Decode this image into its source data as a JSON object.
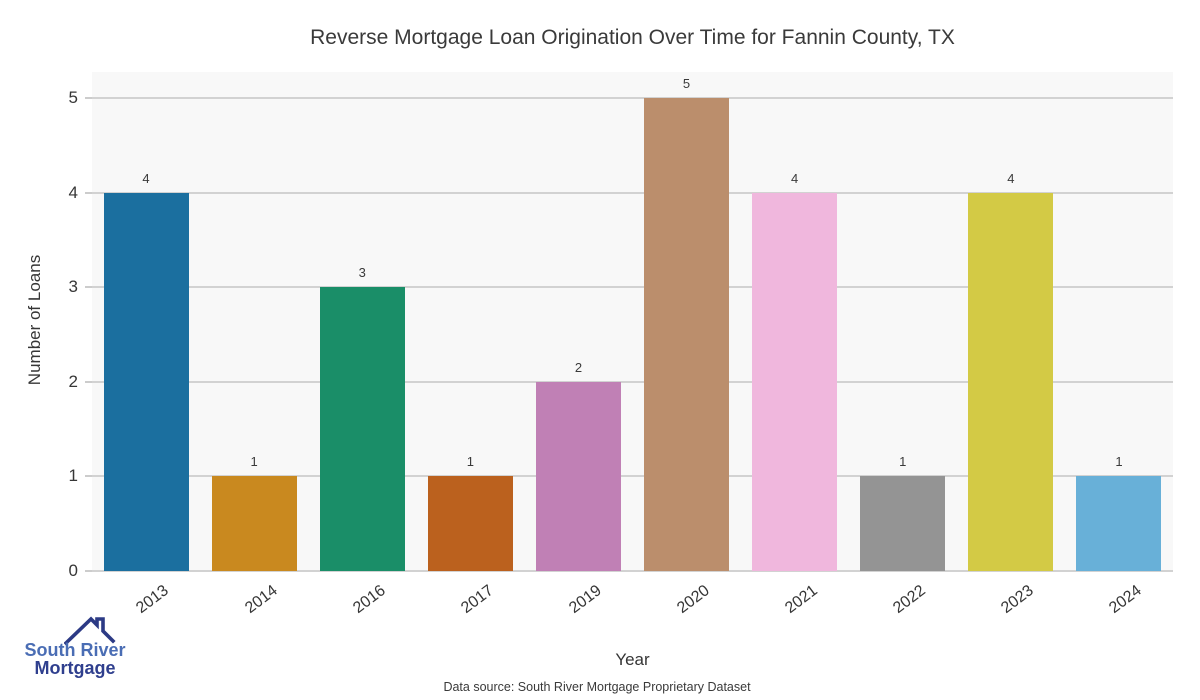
{
  "title": "Reverse Mortgage Loan Origination Over Time for Fannin County, TX",
  "caption": "Data source: South River Mortgage Proprietary Dataset",
  "logo": {
    "line1": "South River",
    "line2": "Mortgage",
    "line1_color": "#4a6db4",
    "line2_color": "#2f3f8e",
    "icon": "house-roof-icon",
    "icon_color": "#2c3a85"
  },
  "chart_data": {
    "type": "bar",
    "title": "Reverse Mortgage Loan Origination Over Time for Fannin County, TX",
    "xlabel": "Year",
    "ylabel": "Number of Loans",
    "categories": [
      "2013",
      "2014",
      "2016",
      "2017",
      "2019",
      "2020",
      "2021",
      "2022",
      "2023",
      "2024"
    ],
    "values": [
      4,
      1,
      3,
      1,
      2,
      5,
      4,
      1,
      4,
      1
    ],
    "bar_labels": [
      "4",
      "1",
      "3",
      "1",
      "2",
      "5",
      "4",
      "1",
      "4",
      "1"
    ],
    "colors": [
      "#1b6f9f",
      "#c9891f",
      "#1a8e68",
      "#bb611e",
      "#c080b5",
      "#bb8e6c",
      "#f0b7dd",
      "#949494",
      "#d3ca45",
      "#68b0d8"
    ],
    "yticks": [
      0,
      1,
      2,
      3,
      4,
      5
    ],
    "yticklabels": [
      "0",
      "1",
      "2",
      "3",
      "4",
      "5"
    ],
    "ylim": [
      0,
      5.275
    ],
    "grid": "horizontal",
    "legend": "none",
    "plot_bg": "#f8f8f8",
    "grid_color": "#d2d2d2",
    "label_color": "#3a3a3a",
    "xtick_rotation_deg": -37
  }
}
